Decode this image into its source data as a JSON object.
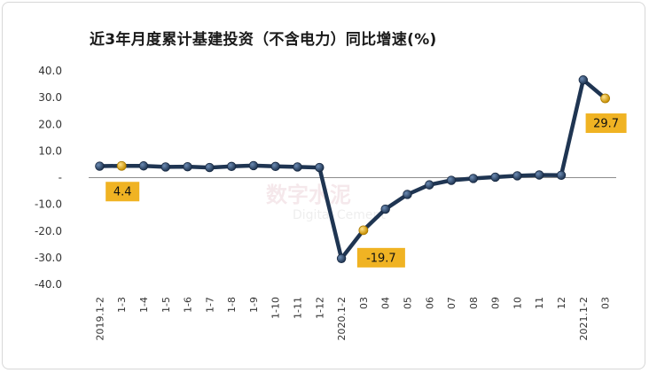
{
  "chart_data": {
    "type": "line",
    "title": "近3年月度累计基建投资（不含电力）同比增速(%)",
    "xlabel": "",
    "ylabel": "",
    "ylim": [
      -40,
      40
    ],
    "yticks": [
      "40.0",
      "30.0",
      "20.0",
      "10.0",
      "-",
      "-10.0",
      "-20.0",
      "-30.0",
      "-40.0"
    ],
    "yticks_values": [
      40,
      30,
      20,
      10,
      0,
      -10,
      -20,
      -30,
      -40
    ],
    "categories": [
      "2019.1-2",
      "1-3",
      "1-4",
      "1-5",
      "1-6",
      "1-7",
      "1-8",
      "1-9",
      "1-10",
      "1-11",
      "1-12",
      "2020.1-2",
      "03",
      "04",
      "05",
      "06",
      "07",
      "08",
      "09",
      "10",
      "11",
      "12",
      "2021.1-2",
      "03"
    ],
    "series": [
      {
        "values": [
          4.3,
          4.4,
          4.4,
          4.0,
          4.1,
          3.8,
          4.2,
          4.5,
          4.2,
          4.0,
          3.8,
          -30.3,
          -19.7,
          -11.8,
          -6.3,
          -2.7,
          -1.0,
          -0.3,
          0.2,
          0.7,
          1.0,
          0.9,
          36.6,
          29.7
        ],
        "color": "#1f3552"
      }
    ],
    "highlight_indices": [
      1,
      12,
      23
    ],
    "highlight_color": "#f0b323",
    "annotations": [
      {
        "index": 1,
        "text": "4.4"
      },
      {
        "index": 12,
        "text": "-19.7"
      },
      {
        "index": 23,
        "text": "29.7"
      }
    ],
    "grid": false,
    "legend": "none"
  },
  "watermark": {
    "main": "数字水泥",
    "sub": "Digital Cement"
  }
}
